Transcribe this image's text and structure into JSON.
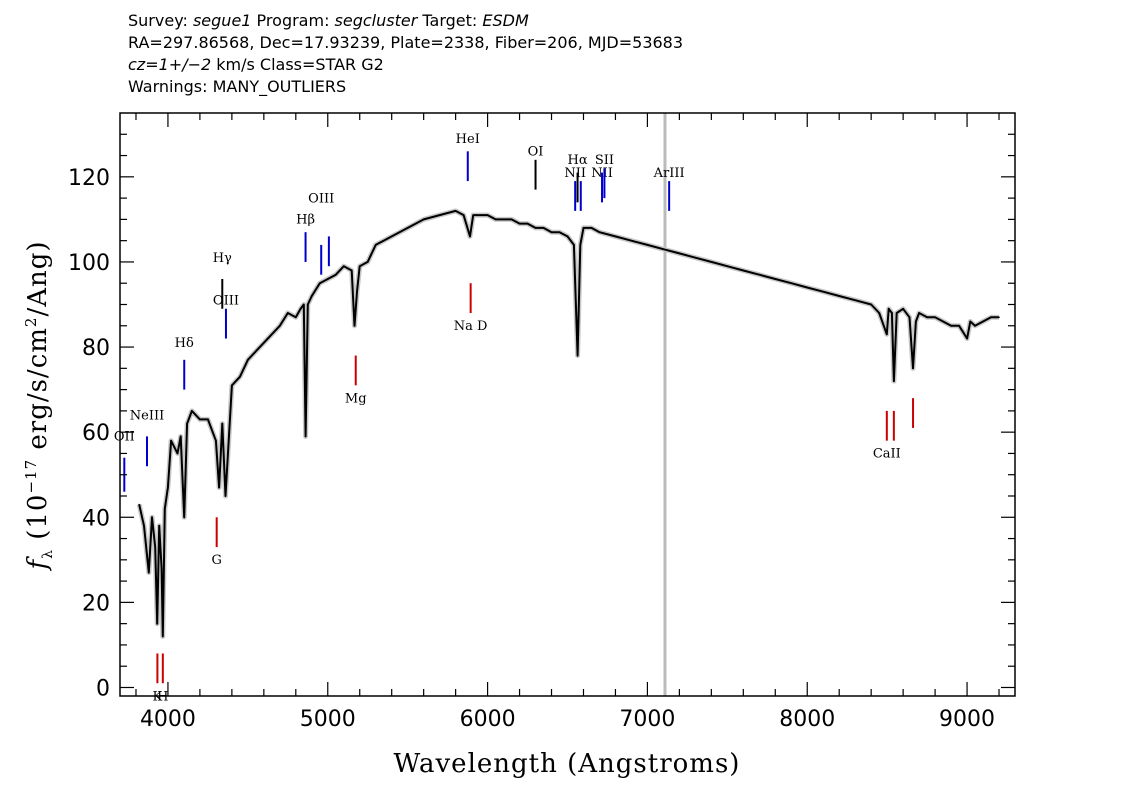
{
  "header": {
    "line1": {
      "survey_label": "Survey: ",
      "survey": "segue1",
      "program_label": " Program: ",
      "program": "segcluster",
      "target_label": " Target: ",
      "target": "ESDM"
    },
    "line2": "RA=297.86568, Dec=17.93239, Plate=2338, Fiber=206, MJD=53683",
    "line3": {
      "cz_label": "cz=",
      "cz_value": "1+/−2",
      "rest": " km/s Class=STAR G2"
    },
    "line4": "Warnings: MANY_OUTLIERS"
  },
  "chart_data": {
    "type": "line",
    "title": "",
    "xlabel": "Wavelength (Angstroms)",
    "ylabel": "f_λ (10^-17 erg/s/cm^2/Ang)",
    "xlim": [
      3700,
      9300
    ],
    "ylim": [
      -2,
      135
    ],
    "x_ticks": [
      4000,
      5000,
      6000,
      7000,
      8000,
      9000
    ],
    "y_ticks": [
      0,
      20,
      40,
      60,
      80,
      100,
      120
    ],
    "grid": false,
    "series": [
      {
        "color": "#000000",
        "x": [
          3820,
          3850,
          3880,
          3900,
          3920,
          3933,
          3945,
          3960,
          3968,
          3980,
          4000,
          4020,
          4060,
          4080,
          4102,
          4120,
          4150,
          4200,
          4250,
          4300,
          4320,
          4340,
          4360,
          4400,
          4450,
          4500,
          4550,
          4600,
          4650,
          4700,
          4750,
          4800,
          4830,
          4850,
          4861,
          4875,
          4900,
          4950,
          5000,
          5050,
          5100,
          5150,
          5167,
          5183,
          5200,
          5250,
          5300,
          5400,
          5500,
          5600,
          5700,
          5800,
          5850,
          5890,
          5910,
          5950,
          6000,
          6050,
          6100,
          6150,
          6200,
          6250,
          6300,
          6350,
          6400,
          6450,
          6500,
          6540,
          6563,
          6580,
          6600,
          6650,
          6700,
          6800,
          6900,
          7000,
          7100,
          7200,
          7300,
          7400,
          7500,
          7600,
          7700,
          7800,
          7900,
          8000,
          8100,
          8200,
          8300,
          8400,
          8450,
          8498,
          8510,
          8530,
          8542,
          8560,
          8600,
          8640,
          8662,
          8680,
          8700,
          8750,
          8800,
          8850,
          8900,
          8950,
          9000,
          9020,
          9050,
          9100,
          9150,
          9200
        ],
        "y": [
          43,
          38,
          27,
          40,
          33,
          15,
          38,
          28,
          12,
          42,
          47,
          58,
          55,
          59,
          40,
          62,
          65,
          63,
          63,
          58,
          47,
          62,
          45,
          71,
          73,
          77,
          79,
          81,
          83,
          85,
          88,
          87,
          89,
          90,
          59,
          90,
          92,
          95,
          96,
          97,
          99,
          98,
          85,
          93,
          99,
          100,
          104,
          106,
          108,
          110,
          111,
          112,
          111,
          106,
          111,
          111,
          111,
          110,
          110,
          110,
          109,
          109,
          108,
          108,
          107,
          107,
          106,
          104,
          78,
          104,
          108,
          108,
          107,
          106,
          105,
          104,
          103,
          102,
          101,
          100,
          99,
          98,
          97,
          96,
          95,
          94,
          93,
          92,
          91,
          90,
          88,
          83,
          89,
          88,
          72,
          88,
          89,
          87,
          75,
          86,
          88,
          87,
          87,
          86,
          85,
          85,
          82,
          86,
          85,
          86,
          87,
          87
        ]
      }
    ],
    "sky_line_x": 7110,
    "emission_lines": [
      {
        "label": "OII",
        "x": 3727,
        "y0": 46,
        "y1": 54,
        "label_y": 58,
        "color": "#0000cc"
      },
      {
        "label": "NeIII",
        "x": 3869,
        "y0": 52,
        "y1": 59,
        "label_y": 63,
        "color": "#0000cc"
      },
      {
        "label": "Hδ",
        "x": 4102,
        "y0": 70,
        "y1": 77,
        "label_y": 80,
        "color": "#0000cc"
      },
      {
        "label": "Hγ",
        "x": 4340,
        "y0": 89,
        "y1": 96,
        "label_y": 100,
        "color": "#000000"
      },
      {
        "label": "OIII",
        "x": 4363,
        "y0": 82,
        "y1": 89,
        "label_y": 90,
        "color": "#0000cc"
      },
      {
        "label": "Hβ",
        "x": 4861,
        "y0": 100,
        "y1": 107,
        "label_y": 109,
        "color": "#0000cc"
      },
      {
        "label": "OIII",
        "x": 4959,
        "y0": 97,
        "y1": 104,
        "label_y": 114,
        "color": "#0000cc"
      },
      {
        "label": "",
        "x": 5007,
        "y0": 99,
        "y1": 106,
        "label_y": 0,
        "color": "#0000cc"
      },
      {
        "label": "HeI",
        "x": 5876,
        "y0": 119,
        "y1": 126,
        "label_y": 128,
        "color": "#0000cc"
      },
      {
        "label": "OI",
        "x": 6300,
        "y0": 117,
        "y1": 124,
        "label_y": 125,
        "color": "#000000"
      },
      {
        "label": "NII",
        "x": 6548,
        "y0": 112,
        "y1": 119,
        "label_y": 120,
        "color": "#0000cc"
      },
      {
        "label": "Hα",
        "x": 6563,
        "y0": 114,
        "y1": 121,
        "label_y": 123,
        "color": "#000000"
      },
      {
        "label": "",
        "x": 6583,
        "y0": 112,
        "y1": 119,
        "label_y": 0,
        "color": "#0000cc"
      },
      {
        "label": "NII",
        "x": 6716,
        "y0": 114,
        "y1": 121,
        "label_y": 120,
        "color": "#0000cc"
      },
      {
        "label": "SII",
        "x": 6731,
        "y0": 115,
        "y1": 122,
        "label_y": 123,
        "color": "#0000cc"
      },
      {
        "label": "ArIII",
        "x": 7136,
        "y0": 112,
        "y1": 119,
        "label_y": 120,
        "color": "#0000cc"
      }
    ],
    "absorption_lines": [
      {
        "label": "K",
        "x": 3934,
        "y0": 1,
        "y1": 8,
        "label_y": -3,
        "color": "#cc0000"
      },
      {
        "label": "H",
        "x": 3968,
        "y0": 1,
        "y1": 8,
        "label_y": -3,
        "color": "#cc0000"
      },
      {
        "label": "G",
        "x": 4305,
        "y0": 33,
        "y1": 40,
        "label_y": 29,
        "color": "#cc0000"
      },
      {
        "label": "Mg",
        "x": 5175,
        "y0": 71,
        "y1": 78,
        "label_y": 67,
        "color": "#cc0000"
      },
      {
        "label": "Na D",
        "x": 5894,
        "y0": 88,
        "y1": 95,
        "label_y": 84,
        "color": "#cc0000"
      },
      {
        "label": "CaII",
        "x": 8498,
        "y0": 58,
        "y1": 65,
        "label_y": 54,
        "color": "#cc0000"
      },
      {
        "label": "",
        "x": 8542,
        "y0": 58,
        "y1": 65,
        "label_y": 0,
        "color": "#cc0000"
      },
      {
        "label": "",
        "x": 8662,
        "y0": 61,
        "y1": 68,
        "label_y": 0,
        "color": "#cc0000"
      }
    ]
  }
}
